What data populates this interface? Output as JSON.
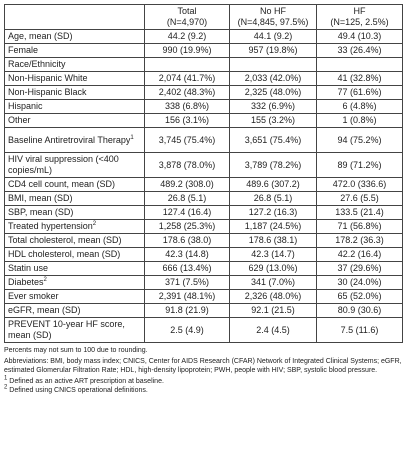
{
  "header": {
    "c0": "",
    "total": [
      "Total",
      "(N=4,970)"
    ],
    "nohf": [
      "No HF",
      "(N=4,845, 97.5%)"
    ],
    "hf": [
      "HF",
      "(N=125, 2.5%)"
    ]
  },
  "rows": [
    {
      "label": "Age, mean (SD)",
      "total": "44.2 (9.2)",
      "nohf": "44.1 (9.2)",
      "hf": "49.4 (10.3)",
      "indent": false,
      "tall": false,
      "sup": ""
    },
    {
      "label": "Female",
      "total": "990 (19.9%)",
      "nohf": "957 (19.8%)",
      "hf": "33 (26.4%)",
      "indent": false,
      "tall": false,
      "sup": ""
    },
    {
      "label": "Race/Ethnicity",
      "total": "",
      "nohf": "",
      "hf": "",
      "indent": false,
      "tall": false,
      "sup": ""
    },
    {
      "label": "Non-Hispanic White",
      "total": "2,074 (41.7%)",
      "nohf": "2,033 (42.0%)",
      "hf": "41 (32.8%)",
      "indent": true,
      "tall": false,
      "sup": ""
    },
    {
      "label": "Non-Hispanic Black",
      "total": "2,402 (48.3%)",
      "nohf": "2,325 (48.0%)",
      "hf": "77 (61.6%)",
      "indent": true,
      "tall": false,
      "sup": ""
    },
    {
      "label": "Hispanic",
      "total": "338 (6.8%)",
      "nohf": "332 (6.9%)",
      "hf": "6 (4.8%)",
      "indent": true,
      "tall": false,
      "sup": ""
    },
    {
      "label": "Other",
      "total": "156 (3.1%)",
      "nohf": "155 (3.2%)",
      "hf": "1 (0.8%)",
      "indent": true,
      "tall": false,
      "sup": ""
    },
    {
      "label": "Baseline Antiretroviral Therapy",
      "total": "3,745 (75.4%)",
      "nohf": "3,651 (75.4%)",
      "hf": "94 (75.2%)",
      "indent": false,
      "tall": true,
      "sup": "1"
    },
    {
      "label": "HIV viral suppression (<400 copies/mL)",
      "total": "3,878 (78.0%)",
      "nohf": "3,789 (78.2%)",
      "hf": "89 (71.2%)",
      "indent": false,
      "tall": true,
      "sup": ""
    },
    {
      "label": "CD4 cell count, mean (SD)",
      "total": "489.2 (308.0)",
      "nohf": "489.6 (307.2)",
      "hf": "472.0 (336.6)",
      "indent": false,
      "tall": false,
      "sup": ""
    },
    {
      "label": "BMI, mean (SD)",
      "total": "26.8 (5.1)",
      "nohf": "26.8 (5.1)",
      "hf": "27.6 (5.5)",
      "indent": false,
      "tall": false,
      "sup": ""
    },
    {
      "label": "SBP, mean (SD)",
      "total": "127.4 (16.4)",
      "nohf": "127.2 (16.3)",
      "hf": "133.5 (21.4)",
      "indent": false,
      "tall": false,
      "sup": ""
    },
    {
      "label": "Treated hypertension",
      "total": "1,258 (25.3%)",
      "nohf": "1,187 (24.5%)",
      "hf": "71 (56.8%)",
      "indent": false,
      "tall": false,
      "sup": "2"
    },
    {
      "label": "Total cholesterol, mean (SD)",
      "total": "178.6 (38.0)",
      "nohf": "178.6 (38.1)",
      "hf": "178.2 (36.3)",
      "indent": false,
      "tall": false,
      "sup": ""
    },
    {
      "label": "HDL cholesterol, mean (SD)",
      "total": "42.3 (14.8)",
      "nohf": "42.3 (14.7)",
      "hf": "42.2 (16.4)",
      "indent": false,
      "tall": false,
      "sup": ""
    },
    {
      "label": "Statin use",
      "total": "666 (13.4%)",
      "nohf": "629 (13.0%)",
      "hf": "37 (29.6%)",
      "indent": false,
      "tall": false,
      "sup": ""
    },
    {
      "label": "Diabetes",
      "total": "371 (7.5%)",
      "nohf": "341 (7.0%)",
      "hf": "30 (24.0%)",
      "indent": false,
      "tall": false,
      "sup": "2"
    },
    {
      "label": "Ever smoker",
      "total": "2,391 (48.1%)",
      "nohf": "2,326 (48.0%)",
      "hf": "65 (52.0%)",
      "indent": false,
      "tall": false,
      "sup": ""
    },
    {
      "label": "eGFR, mean (SD)",
      "total": "91.8 (21.9)",
      "nohf": "92.1 (21.5)",
      "hf": "80.9 (30.6)",
      "indent": false,
      "tall": false,
      "sup": ""
    },
    {
      "label": "PREVENT 10-year HF score, mean (SD)",
      "total": "2.5 (4.9)",
      "nohf": "2.4 (4.5)",
      "hf": "7.5 (11.6)",
      "indent": false,
      "tall": true,
      "sup": ""
    }
  ],
  "footnotes": [
    "Percents may not sum to 100 due to rounding.",
    "Abbreviations: BMI, body mass index; CNICS, Center for AIDS Research (CFAR) Network of Integrated Clinical Systems; eGFR, estimated Glomerular Filtration Rate; HDL, high-density lipoprotein; PWH, people with HIV; SBP, systolic blood pressure."
  ],
  "defs": [
    {
      "sup": "1",
      "text": "Defined as an active ART prescription at baseline."
    },
    {
      "sup": "2",
      "text": "Defined using CNICS operational definitions."
    }
  ]
}
